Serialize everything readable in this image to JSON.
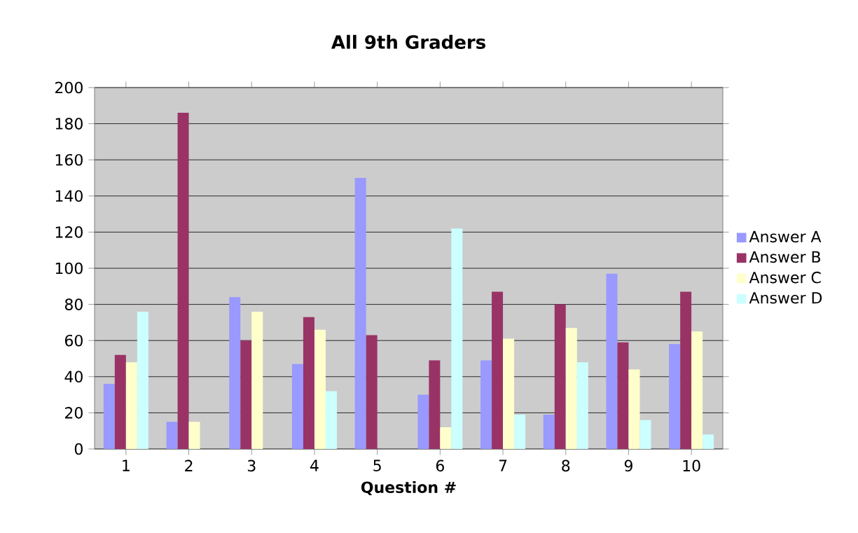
{
  "chart_data": {
    "type": "bar",
    "title": "All 9th Graders",
    "xlabel": "Question #",
    "categories": [
      "1",
      "2",
      "3",
      "4",
      "5",
      "6",
      "7",
      "8",
      "9",
      "10"
    ],
    "series": [
      {
        "name": "Answer A",
        "color": "#9999ff",
        "values": [
          36,
          15,
          84,
          47,
          150,
          30,
          49,
          19,
          97,
          58
        ]
      },
      {
        "name": "Answer B",
        "color": "#993366",
        "values": [
          52,
          186,
          60,
          73,
          63,
          49,
          87,
          80,
          59,
          87
        ]
      },
      {
        "name": "Answer C",
        "color": "#ffffcc",
        "values": [
          48,
          15,
          76,
          66,
          0,
          12,
          61,
          67,
          44,
          65
        ]
      },
      {
        "name": "Answer D",
        "color": "#ccffff",
        "values": [
          76,
          0,
          0,
          32,
          0,
          122,
          19,
          48,
          16,
          8
        ]
      }
    ],
    "ylim": [
      0,
      200
    ],
    "yticks": [
      0,
      20,
      40,
      60,
      80,
      100,
      120,
      140,
      160,
      180,
      200
    ],
    "grid": "y",
    "legend": "right"
  }
}
